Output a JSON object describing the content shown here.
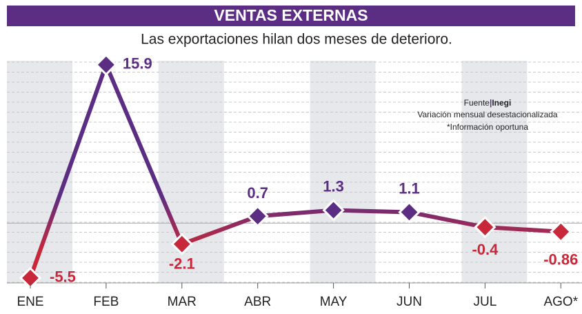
{
  "chart_data": {
    "type": "line",
    "title": "VENTAS EXTERNAS",
    "subtitle": "Las exportaciones hilan dos meses de deterioro.",
    "source_label": "Fuente",
    "source": "Inegi",
    "notes": [
      "Variación mensual desestacionalizada",
      "*Información oportuna"
    ],
    "categories": [
      "ENE",
      "FEB",
      "MAR",
      "ABR",
      "MAY",
      "JUN",
      "JUL",
      "AGO*"
    ],
    "values": [
      -5.5,
      15.9,
      -2.1,
      0.7,
      1.3,
      1.1,
      -0.4,
      -0.86
    ],
    "colors": {
      "positive": "#5b2d83",
      "negative": "#c8283a"
    },
    "ylim": [
      -6,
      16.3
    ]
  }
}
